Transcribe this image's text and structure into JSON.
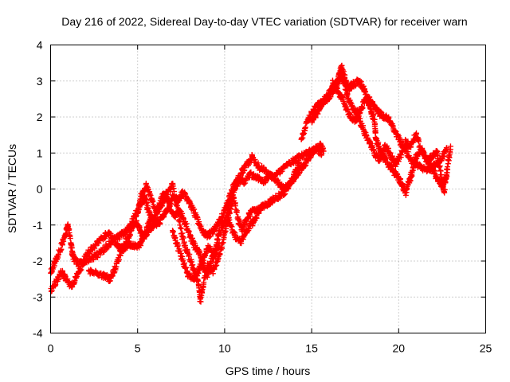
{
  "chart_data": {
    "type": "scatter",
    "title": "Day 216 of 2022, Sidereal Day-to-day VTEC variation (SDTVAR) for receiver warn",
    "xlabel": "GPS time / hours",
    "ylabel": "SDTVAR / TECUs",
    "xlim": [
      0,
      25
    ],
    "ylim": [
      -4,
      4
    ],
    "xticks": [
      0,
      5,
      10,
      15,
      20,
      25
    ],
    "yticks": [
      -4,
      -3,
      -2,
      -1,
      0,
      1,
      2,
      3,
      4
    ],
    "grid": true,
    "marker": "+",
    "series": [
      {
        "name": "SDTVAR",
        "color": "#ff0000",
        "paths": [
          [
            [
              0.0,
              -2.3
            ],
            [
              0.3,
              -2.0
            ],
            [
              0.6,
              -1.6
            ],
            [
              0.9,
              -1.2
            ],
            [
              1.0,
              -1.0
            ],
            [
              1.2,
              -1.6
            ],
            [
              1.3,
              -1.9
            ],
            [
              1.6,
              -2.1
            ],
            [
              2.0,
              -2.0
            ],
            [
              2.4,
              -1.9
            ],
            [
              2.8,
              -1.8
            ],
            [
              3.2,
              -1.6
            ],
            [
              3.6,
              -1.4
            ],
            [
              4.0,
              -1.3
            ],
            [
              4.3,
              -1.2
            ],
            [
              4.6,
              -1.0
            ],
            [
              4.9,
              -0.7
            ],
            [
              5.2,
              -0.4
            ],
            [
              5.4,
              -0.2
            ],
            [
              5.6,
              -0.6
            ],
            [
              5.9,
              -0.9
            ],
            [
              6.2,
              -0.5
            ],
            [
              6.5,
              -0.1
            ],
            [
              6.8,
              -0.4
            ],
            [
              7.1,
              -0.8
            ],
            [
              7.4,
              -0.6
            ],
            [
              7.7,
              -0.9
            ],
            [
              8.0,
              -1.3
            ],
            [
              8.3,
              -1.6
            ],
            [
              8.6,
              -1.8
            ],
            [
              8.8,
              -2.2
            ],
            [
              9.0,
              -2.4
            ],
            [
              9.2,
              -2.0
            ],
            [
              9.5,
              -1.6
            ],
            [
              9.7,
              -1.2
            ],
            [
              10.0,
              -0.9
            ],
            [
              10.3,
              -0.4
            ],
            [
              10.5,
              -0.1
            ],
            [
              10.8,
              0.2
            ],
            [
              11.0,
              0.5
            ],
            [
              11.3,
              0.7
            ],
            [
              11.6,
              0.9
            ],
            [
              12.0,
              0.6
            ],
            [
              12.4,
              0.5
            ],
            [
              12.8,
              0.3
            ],
            [
              13.2,
              0.5
            ],
            [
              13.6,
              0.7
            ],
            [
              14.0,
              0.8
            ],
            [
              14.4,
              0.9
            ],
            [
              14.8,
              1.0
            ],
            [
              15.2,
              1.1
            ],
            [
              15.6,
              1.0
            ]
          ],
          [
            [
              0.0,
              -2.8
            ],
            [
              0.3,
              -2.6
            ],
            [
              0.6,
              -2.3
            ],
            [
              0.9,
              -2.5
            ],
            [
              1.2,
              -2.7
            ],
            [
              1.5,
              -2.4
            ],
            [
              1.8,
              -2.1
            ],
            [
              2.1,
              -1.8
            ],
            [
              2.5,
              -1.6
            ],
            [
              2.9,
              -1.4
            ],
            [
              3.3,
              -1.2
            ],
            [
              3.6,
              -1.4
            ],
            [
              3.9,
              -1.6
            ],
            [
              4.2,
              -1.7
            ],
            [
              4.5,
              -1.5
            ],
            [
              4.8,
              -1.6
            ],
            [
              5.0,
              -1.6
            ],
            [
              5.2,
              -1.5
            ],
            [
              5.4,
              -1.3
            ],
            [
              5.6,
              -1.0
            ],
            [
              5.8,
              -0.8
            ],
            [
              6.1,
              -1.0
            ],
            [
              6.4,
              -0.8
            ],
            [
              6.7,
              -0.6
            ],
            [
              7.0,
              -0.2
            ],
            [
              7.3,
              -0.3
            ],
            [
              7.6,
              -0.1
            ],
            [
              7.9,
              -0.3
            ],
            [
              8.2,
              -0.6
            ],
            [
              8.5,
              -0.9
            ],
            [
              8.8,
              -1.2
            ],
            [
              9.0,
              -1.3
            ],
            [
              9.3,
              -1.2
            ],
            [
              9.6,
              -1.0
            ],
            [
              9.9,
              -0.7
            ],
            [
              10.2,
              -0.3
            ],
            [
              10.5,
              0.1
            ],
            [
              10.8,
              0.3
            ],
            [
              11.1,
              0.2
            ],
            [
              11.5,
              0.4
            ],
            [
              11.9,
              0.3
            ],
            [
              12.3,
              0.2
            ],
            [
              12.6,
              0.4
            ],
            [
              13.0,
              0.2
            ],
            [
              13.4,
              0.0
            ],
            [
              13.8,
              0.2
            ],
            [
              14.1,
              0.5
            ],
            [
              14.3,
              0.8
            ]
          ],
          [
            [
              2.2,
              -2.3
            ],
            [
              2.6,
              -2.3
            ],
            [
              3.0,
              -2.4
            ],
            [
              3.4,
              -2.5
            ],
            [
              3.7,
              -2.2
            ],
            [
              4.0,
              -1.8
            ],
            [
              4.3,
              -1.5
            ],
            [
              4.6,
              -1.2
            ],
            [
              4.9,
              -0.9
            ],
            [
              5.1,
              -1.1
            ],
            [
              5.3,
              -1.3
            ],
            [
              5.6,
              -1.2
            ],
            [
              5.9,
              -1.0
            ],
            [
              6.2,
              -0.8
            ]
          ],
          [
            [
              5.0,
              -0.6
            ],
            [
              5.2,
              -0.2
            ],
            [
              5.5,
              0.1
            ],
            [
              5.8,
              -0.3
            ],
            [
              6.1,
              -0.7
            ],
            [
              6.4,
              -0.4
            ],
            [
              6.7,
              -0.1
            ],
            [
              7.0,
              0.1
            ],
            [
              7.3,
              -0.6
            ],
            [
              7.6,
              -1.4
            ],
            [
              7.9,
              -1.8
            ],
            [
              8.2,
              -2.2
            ],
            [
              8.5,
              -2.6
            ],
            [
              8.6,
              -3.1
            ],
            [
              8.8,
              -2.6
            ],
            [
              9.0,
              -2.1
            ],
            [
              9.3,
              -2.3
            ],
            [
              9.6,
              -2.0
            ],
            [
              9.9,
              -1.5
            ],
            [
              10.1,
              -1.0
            ],
            [
              10.3,
              -0.6
            ],
            [
              10.5,
              -0.2
            ],
            [
              10.8,
              -0.9
            ],
            [
              11.0,
              -1.1
            ],
            [
              11.3,
              -0.8
            ],
            [
              11.6,
              -0.6
            ],
            [
              11.9,
              -0.6
            ],
            [
              12.2,
              -0.5
            ],
            [
              12.5,
              -0.4
            ],
            [
              12.8,
              -0.3
            ],
            [
              13.1,
              -0.2
            ],
            [
              13.4,
              -0.1
            ],
            [
              13.7,
              0.1
            ],
            [
              14.0,
              0.3
            ],
            [
              14.3,
              0.5
            ],
            [
              14.6,
              0.7
            ],
            [
              14.9,
              0.9
            ],
            [
              15.2,
              1.1
            ],
            [
              15.5,
              1.2
            ],
            [
              15.7,
              1.1
            ]
          ],
          [
            [
              14.4,
              1.4
            ],
            [
              14.7,
              1.8
            ],
            [
              15.0,
              2.1
            ],
            [
              15.3,
              2.3
            ],
            [
              15.6,
              2.4
            ],
            [
              15.9,
              2.5
            ],
            [
              16.2,
              2.7
            ],
            [
              16.5,
              2.9
            ],
            [
              16.7,
              3.2
            ],
            [
              16.9,
              2.9
            ],
            [
              17.1,
              2.5
            ],
            [
              17.4,
              2.2
            ],
            [
              17.7,
              2.1
            ],
            [
              18.0,
              2.4
            ],
            [
              18.3,
              2.5
            ],
            [
              18.6,
              2.3
            ],
            [
              18.9,
              2.1
            ],
            [
              19.2,
              2.0
            ],
            [
              19.5,
              1.9
            ],
            [
              19.8,
              1.6
            ],
            [
              20.1,
              1.3
            ],
            [
              20.4,
              1.1
            ],
            [
              20.7,
              0.8
            ],
            [
              21.0,
              0.7
            ],
            [
              21.3,
              0.6
            ],
            [
              21.6,
              0.5
            ],
            [
              21.9,
              0.6
            ],
            [
              22.2,
              0.7
            ],
            [
              22.5,
              0.9
            ],
            [
              22.8,
              1.1
            ]
          ],
          [
            [
              15.0,
              1.9
            ],
            [
              15.3,
              2.1
            ],
            [
              15.6,
              2.4
            ],
            [
              15.9,
              2.6
            ],
            [
              16.2,
              2.8
            ],
            [
              16.5,
              3.0
            ],
            [
              16.7,
              3.4
            ],
            [
              16.9,
              3.1
            ],
            [
              17.1,
              2.8
            ],
            [
              17.4,
              2.9
            ],
            [
              17.7,
              3.0
            ],
            [
              18.0,
              2.8
            ],
            [
              18.2,
              2.5
            ],
            [
              18.4,
              2.2
            ],
            [
              18.6,
              1.9
            ],
            [
              18.7,
              1.4
            ],
            [
              18.9,
              1.1
            ],
            [
              19.1,
              0.9
            ],
            [
              19.4,
              0.7
            ],
            [
              19.7,
              0.5
            ],
            [
              20.0,
              0.3
            ],
            [
              20.2,
              0.1
            ],
            [
              20.4,
              -0.1
            ],
            [
              20.6,
              0.2
            ],
            [
              20.8,
              0.5
            ],
            [
              21.0,
              0.9
            ],
            [
              21.3,
              1.1
            ],
            [
              21.6,
              0.8
            ],
            [
              21.9,
              0.6
            ],
            [
              22.2,
              0.3
            ],
            [
              22.5,
              0.1
            ],
            [
              22.8,
              0.4
            ]
          ],
          [
            [
              16.2,
              3.0
            ],
            [
              16.5,
              2.7
            ],
            [
              16.8,
              2.5
            ],
            [
              17.1,
              2.1
            ],
            [
              17.4,
              1.9
            ],
            [
              17.7,
              2.0
            ],
            [
              18.0,
              1.6
            ],
            [
              18.3,
              1.3
            ],
            [
              18.6,
              1.0
            ],
            [
              18.9,
              0.8
            ],
            [
              19.2,
              1.2
            ],
            [
              19.5,
              1.0
            ],
            [
              19.8,
              0.7
            ],
            [
              20.1,
              0.9
            ],
            [
              20.4,
              1.3
            ],
            [
              20.7,
              1.2
            ],
            [
              21.0,
              1.5
            ],
            [
              21.3,
              1.1
            ],
            [
              21.6,
              0.8
            ],
            [
              21.9,
              0.9
            ],
            [
              22.2,
              1.0
            ],
            [
              22.4,
              0.5
            ],
            [
              22.6,
              -0.1
            ],
            [
              22.8,
              0.6
            ],
            [
              23.0,
              1.2
            ]
          ],
          [
            [
              7.0,
              -1.2
            ],
            [
              7.3,
              -1.6
            ],
            [
              7.6,
              -2.0
            ],
            [
              7.9,
              -2.4
            ],
            [
              8.2,
              -2.5
            ],
            [
              8.5,
              -2.3
            ],
            [
              8.8,
              -1.9
            ],
            [
              9.1,
              -1.6
            ],
            [
              9.4,
              -1.9
            ],
            [
              9.7,
              -1.5
            ]
          ],
          [
            [
              10.1,
              -0.5
            ],
            [
              10.3,
              -1.0
            ],
            [
              10.6,
              -1.3
            ],
            [
              10.9,
              -1.5
            ],
            [
              11.2,
              -1.2
            ],
            [
              11.5,
              -1.0
            ],
            [
              11.8,
              -0.8
            ],
            [
              12.1,
              -0.5
            ]
          ]
        ]
      }
    ]
  }
}
